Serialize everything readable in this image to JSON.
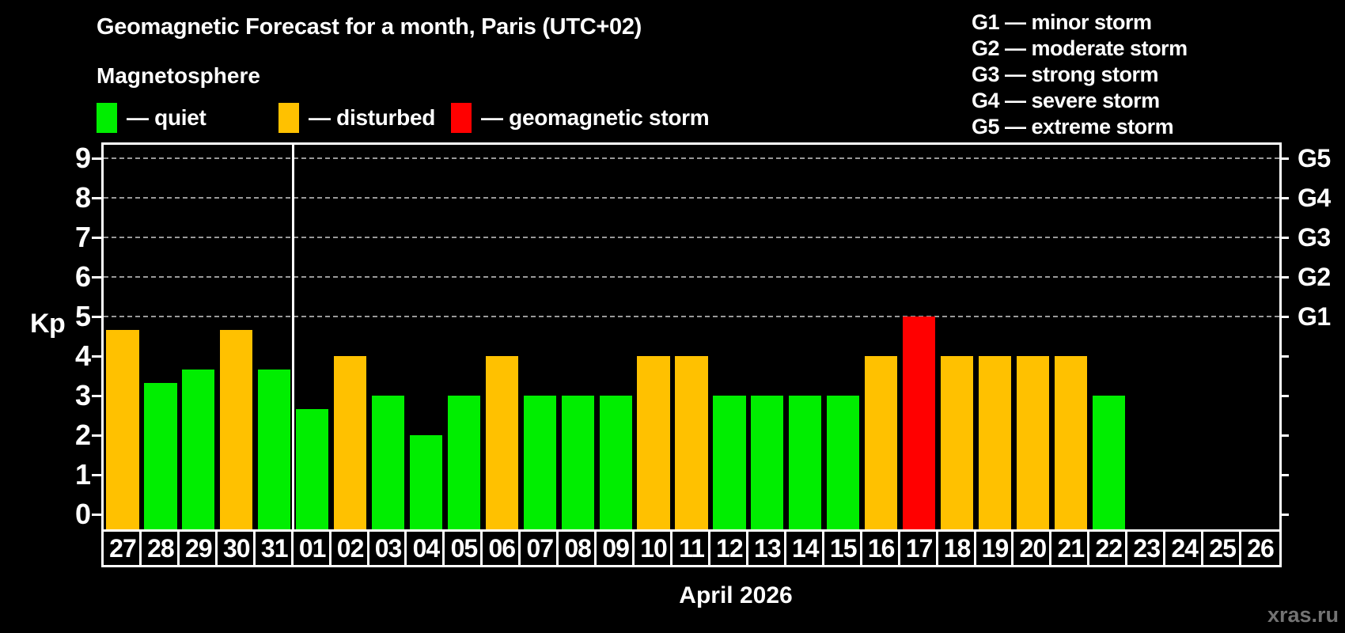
{
  "title": "Geomagnetic Forecast for a month, Paris (UTC+02)",
  "subtitle": "Magnetosphere",
  "legend": {
    "items": [
      {
        "label": "— quiet",
        "status": "quiet",
        "color": "#00ee00"
      },
      {
        "label": "— disturbed",
        "status": "disturbed",
        "color": "#ffc100"
      },
      {
        "label": "— geomagnetic storm",
        "status": "storm",
        "color": "#ff0000"
      }
    ]
  },
  "g_legend": {
    "lines": [
      "G1 — minor storm",
      "G2 — moderate storm",
      "G3 — strong storm",
      "G4 — severe storm",
      "G5 — extreme storm"
    ]
  },
  "watermark": "xras.ru",
  "chart_data": {
    "type": "bar",
    "title": "Geomagnetic Forecast for a month, Paris (UTC+02)",
    "subtitle": "Magnetosphere",
    "ylabel": "Kp",
    "month_label": "April 2026",
    "ylim": [
      0,
      9.4
    ],
    "yticks": [
      0,
      1,
      2,
      3,
      4,
      5,
      6,
      7,
      8,
      9
    ],
    "gridlines_at": [
      5,
      6,
      7,
      8,
      9
    ],
    "grid_style": "dashed horizontal lines only at storm levels G1–G5",
    "right_axis": [
      {
        "kp": 5,
        "label": "G1"
      },
      {
        "kp": 6,
        "label": "G2"
      },
      {
        "kp": 7,
        "label": "G3"
      },
      {
        "kp": 8,
        "label": "G4"
      },
      {
        "kp": 9,
        "label": "G5"
      }
    ],
    "month_separator_after_index": 4,
    "status_colors": {
      "quiet": "#00ee00",
      "disturbed": "#ffc100",
      "storm": "#ff0000"
    },
    "days": [
      {
        "day": "27",
        "kp": 4.67,
        "status": "disturbed"
      },
      {
        "day": "28",
        "kp": 3.33,
        "status": "quiet"
      },
      {
        "day": "29",
        "kp": 3.67,
        "status": "quiet"
      },
      {
        "day": "30",
        "kp": 4.67,
        "status": "disturbed"
      },
      {
        "day": "31",
        "kp": 3.67,
        "status": "quiet"
      },
      {
        "day": "01",
        "kp": 2.67,
        "status": "quiet"
      },
      {
        "day": "02",
        "kp": 4,
        "status": "disturbed"
      },
      {
        "day": "03",
        "kp": 3,
        "status": "quiet"
      },
      {
        "day": "04",
        "kp": 2,
        "status": "quiet"
      },
      {
        "day": "05",
        "kp": 3,
        "status": "quiet"
      },
      {
        "day": "06",
        "kp": 4,
        "status": "disturbed"
      },
      {
        "day": "07",
        "kp": 3,
        "status": "quiet"
      },
      {
        "day": "08",
        "kp": 3,
        "status": "quiet"
      },
      {
        "day": "09",
        "kp": 3,
        "status": "quiet"
      },
      {
        "day": "10",
        "kp": 4,
        "status": "disturbed"
      },
      {
        "day": "11",
        "kp": 4,
        "status": "disturbed"
      },
      {
        "day": "12",
        "kp": 3,
        "status": "quiet"
      },
      {
        "day": "13",
        "kp": 3,
        "status": "quiet"
      },
      {
        "day": "14",
        "kp": 3,
        "status": "quiet"
      },
      {
        "day": "15",
        "kp": 3,
        "status": "quiet"
      },
      {
        "day": "16",
        "kp": 4,
        "status": "disturbed"
      },
      {
        "day": "17",
        "kp": 5,
        "status": "storm"
      },
      {
        "day": "18",
        "kp": 4,
        "status": "disturbed"
      },
      {
        "day": "19",
        "kp": 4,
        "status": "disturbed"
      },
      {
        "day": "20",
        "kp": 4,
        "status": "disturbed"
      },
      {
        "day": "21",
        "kp": 4,
        "status": "disturbed"
      },
      {
        "day": "22",
        "kp": 3,
        "status": "quiet"
      },
      {
        "day": "23",
        "kp": null,
        "status": "none"
      },
      {
        "day": "24",
        "kp": null,
        "status": "none"
      },
      {
        "day": "25",
        "kp": null,
        "status": "none"
      },
      {
        "day": "26",
        "kp": null,
        "status": "none"
      }
    ]
  }
}
